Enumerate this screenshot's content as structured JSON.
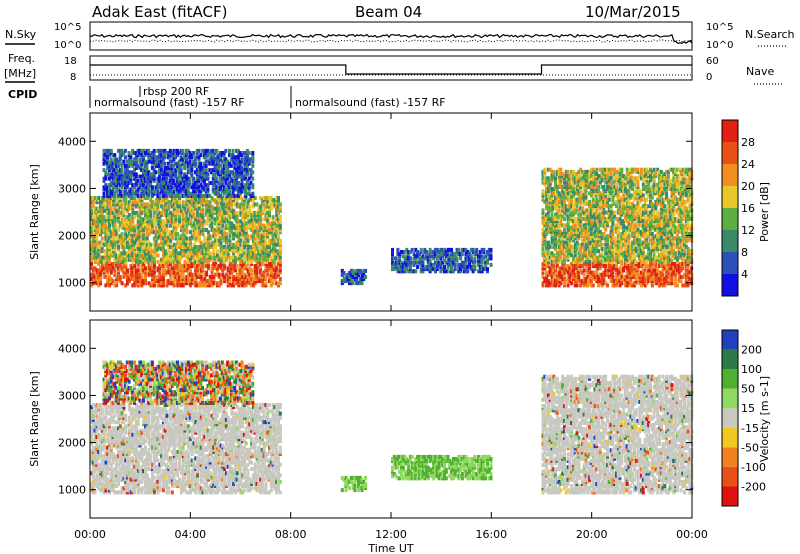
{
  "header": {
    "radar": "Adak East (fitACF)",
    "beam": "Beam 04",
    "date": "10/Mar/2015"
  },
  "top_panels": {
    "nsky_label": "N.Sky",
    "nsearch_label": "N.Search",
    "freq_label_1": "Freq.",
    "freq_label_2": "[MHz]",
    "nave_label": "Nave",
    "cpid_label": "CPID",
    "noise_left_ticks": [
      "10^5",
      "10^0"
    ],
    "noise_right_ticks": [
      "10^5",
      "10^0"
    ],
    "freq_left_ticks": [
      "18",
      "8"
    ],
    "freq_right_ticks": [
      "60",
      "0"
    ],
    "cpid_segments": [
      {
        "text": "normalsound (fast) -157 RF",
        "start_hour": 0
      },
      {
        "text": "rbsp 200 RF",
        "start_hour": 2
      },
      {
        "text": "normalsound (fast) -157 RF",
        "start_hour": 8
      }
    ]
  },
  "chart_data": [
    {
      "type": "heatmap",
      "name": "power",
      "ylabel": "Slant Range [km]",
      "xlabel": "Time UT",
      "xlim": [
        0,
        24
      ],
      "ylim": [
        400,
        4600
      ],
      "x_ticks": [
        "00:00",
        "04:00",
        "08:00",
        "12:00",
        "16:00",
        "20:00",
        "00:00"
      ],
      "y_ticks": [
        "1000",
        "2000",
        "3000",
        "4000"
      ],
      "y_tick_values": [
        1000,
        2000,
        3000,
        4000
      ],
      "colorbar": {
        "label": "Power [dB]",
        "ticks": [
          "4",
          "8",
          "12",
          "16",
          "20",
          "24",
          "28"
        ],
        "colors": [
          "#1010e0",
          "#2c50b8",
          "#3a8a6a",
          "#5cb040",
          "#e6c828",
          "#f09020",
          "#e85018",
          "#e02010"
        ]
      },
      "echo_regions": [
        {
          "t0": 0.0,
          "t1": 7.6,
          "r0": 900,
          "r1": 1400,
          "level": "high"
        },
        {
          "t0": 0.0,
          "t1": 7.6,
          "r0": 1400,
          "r1": 2800,
          "level": "mid"
        },
        {
          "t0": 0.5,
          "t1": 6.5,
          "r0": 2800,
          "r1": 3800,
          "level": "low"
        },
        {
          "t0": 10.0,
          "t1": 11.0,
          "r0": 950,
          "r1": 1250,
          "level": "low"
        },
        {
          "t0": 12.0,
          "t1": 16.0,
          "r0": 1200,
          "r1": 1700,
          "level": "low"
        },
        {
          "t0": 18.0,
          "t1": 24.0,
          "r0": 900,
          "r1": 1400,
          "level": "high"
        },
        {
          "t0": 18.0,
          "t1": 24.0,
          "r0": 1400,
          "r1": 3400,
          "level": "mid"
        }
      ]
    },
    {
      "type": "heatmap",
      "name": "velocity",
      "ylabel": "Slant Range [km]",
      "xlabel": "Time UT",
      "xlim": [
        0,
        24
      ],
      "ylim": [
        400,
        4600
      ],
      "x_ticks": [
        "00:00",
        "04:00",
        "08:00",
        "12:00",
        "16:00",
        "20:00",
        "00:00"
      ],
      "y_ticks": [
        "1000",
        "2000",
        "3000",
        "4000"
      ],
      "y_tick_values": [
        1000,
        2000,
        3000,
        4000
      ],
      "colorbar": {
        "label": "Velocity [m s-1]",
        "ticks": [
          "200",
          "100",
          "50",
          "15",
          "-15",
          "-50",
          "-100",
          "-200"
        ],
        "colors": [
          "#2040c0",
          "#2c7a4a",
          "#50b030",
          "#90d860",
          "#c8c8c0",
          "#f0c820",
          "#f08020",
          "#e85018",
          "#e01010"
        ]
      },
      "echo_regions": [
        {
          "t0": 0.0,
          "t1": 7.6,
          "r0": 900,
          "r1": 2800,
          "level": "gray"
        },
        {
          "t0": 0.5,
          "t1": 6.5,
          "r0": 2800,
          "r1": 3700,
          "level": "mixed"
        },
        {
          "t0": 10.0,
          "t1": 11.0,
          "r0": 950,
          "r1": 1250,
          "level": "green"
        },
        {
          "t0": 12.0,
          "t1": 16.0,
          "r0": 1200,
          "r1": 1700,
          "level": "green"
        },
        {
          "t0": 18.0,
          "t1": 24.0,
          "r0": 900,
          "r1": 3400,
          "level": "gray"
        }
      ]
    }
  ]
}
